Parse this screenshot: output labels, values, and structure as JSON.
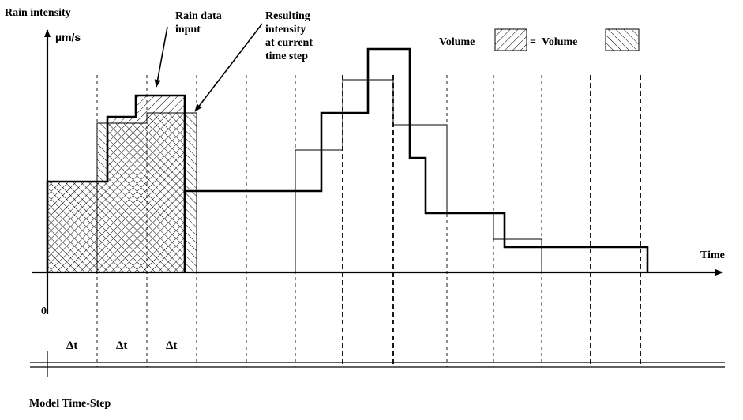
{
  "labels": {
    "y_axis_title": "Rain intensity",
    "y_axis_unit": "µm/s",
    "x_axis_title": "Time",
    "origin": "0",
    "model_time_step": "Model Time-Step",
    "delta_t": [
      "Δt",
      "Δt",
      "Δt"
    ],
    "rain_data_input": [
      "Rain data",
      "input"
    ],
    "resulting_intensity": [
      "Resulting",
      "intensity",
      "at current",
      "time step"
    ],
    "volume_left": "Volume",
    "equals": "=",
    "volume_right": "Volume"
  },
  "legend": {
    "left_pattern": "forward-diagonal-hatch",
    "right_pattern": "backward-diagonal-hatch"
  },
  "colors": {
    "ink": "#000000",
    "background": "#ffffff"
  }
}
